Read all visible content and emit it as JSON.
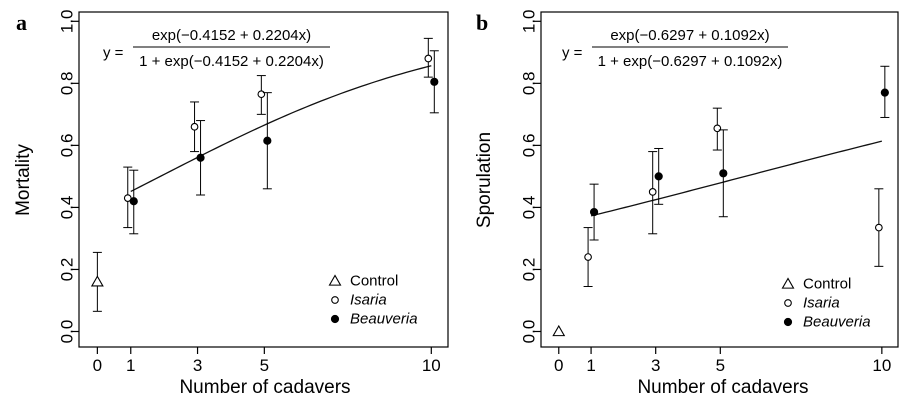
{
  "chart_data": [
    {
      "type": "scatter",
      "panel": "a",
      "xlabel": "Number of cadavers",
      "ylabel": "Mortality",
      "xticks": [
        0,
        1,
        3,
        5,
        10
      ],
      "yticks": [
        0.0,
        0.2,
        0.4,
        0.6,
        0.8,
        1.0
      ],
      "ylim": [
        -0.05,
        1.03
      ],
      "xlim": [
        -0.55,
        10.5
      ],
      "equation": {
        "prefix": "y =",
        "numerator": "exp(−0.4152 + 0.2204x)",
        "denominator": "1 + exp(−0.4152 + 0.2204x)"
      },
      "fit": {
        "a": -0.4152,
        "b": 0.2204,
        "x_from": 1,
        "x_to": 10
      },
      "legend_position": "bottom-right",
      "series": [
        {
          "name": "Control",
          "marker": "triangle-open",
          "points": [
            {
              "x": 0,
              "y": 0.16,
              "lo": 0.065,
              "hi": 0.255
            }
          ]
        },
        {
          "name": "Isaria",
          "marker": "circle-open",
          "points": [
            {
              "x": 1,
              "y": 0.43,
              "lo": 0.335,
              "hi": 0.53
            },
            {
              "x": 3,
              "y": 0.66,
              "lo": 0.58,
              "hi": 0.74
            },
            {
              "x": 5,
              "y": 0.765,
              "lo": 0.7,
              "hi": 0.825
            },
            {
              "x": 10,
              "y": 0.88,
              "lo": 0.82,
              "hi": 0.945
            }
          ]
        },
        {
          "name": "Beauveria",
          "marker": "circle-filled",
          "points": [
            {
              "x": 1,
              "y": 0.42,
              "lo": 0.315,
              "hi": 0.52
            },
            {
              "x": 3,
              "y": 0.56,
              "lo": 0.44,
              "hi": 0.68
            },
            {
              "x": 5,
              "y": 0.615,
              "lo": 0.46,
              "hi": 0.77
            },
            {
              "x": 10,
              "y": 0.805,
              "lo": 0.705,
              "hi": 0.905
            }
          ]
        }
      ]
    },
    {
      "type": "scatter",
      "panel": "b",
      "xlabel": "Number of cadavers",
      "ylabel": "Sporulation",
      "xticks": [
        0,
        1,
        3,
        5,
        10
      ],
      "yticks": [
        0.0,
        0.2,
        0.4,
        0.6,
        0.8,
        1.0
      ],
      "ylim": [
        -0.05,
        1.03
      ],
      "xlim": [
        -0.55,
        10.5
      ],
      "equation": {
        "prefix": "y =",
        "numerator": "exp(−0.6297 + 0.1092x)",
        "denominator": "1 + exp(−0.6297 + 0.1092x)"
      },
      "fit": {
        "a": -0.6297,
        "b": 0.1092,
        "x_from": 1,
        "x_to": 10
      },
      "legend_position": "bottom-right",
      "series": [
        {
          "name": "Control",
          "marker": "triangle-open",
          "points": [
            {
              "x": 0,
              "y": 0.0
            }
          ]
        },
        {
          "name": "Isaria",
          "marker": "circle-open",
          "points": [
            {
              "x": 1,
              "y": 0.24,
              "lo": 0.145,
              "hi": 0.335
            },
            {
              "x": 3,
              "y": 0.45,
              "lo": 0.315,
              "hi": 0.58
            },
            {
              "x": 5,
              "y": 0.655,
              "lo": 0.585,
              "hi": 0.72
            },
            {
              "x": 10,
              "y": 0.335,
              "lo": 0.21,
              "hi": 0.46
            }
          ]
        },
        {
          "name": "Beauveria",
          "marker": "circle-filled",
          "points": [
            {
              "x": 1,
              "y": 0.385,
              "lo": 0.295,
              "hi": 0.475
            },
            {
              "x": 3,
              "y": 0.5,
              "lo": 0.41,
              "hi": 0.59
            },
            {
              "x": 5,
              "y": 0.51,
              "lo": 0.37,
              "hi": 0.65
            },
            {
              "x": 10,
              "y": 0.77,
              "lo": 0.69,
              "hi": 0.855
            }
          ]
        }
      ]
    }
  ]
}
